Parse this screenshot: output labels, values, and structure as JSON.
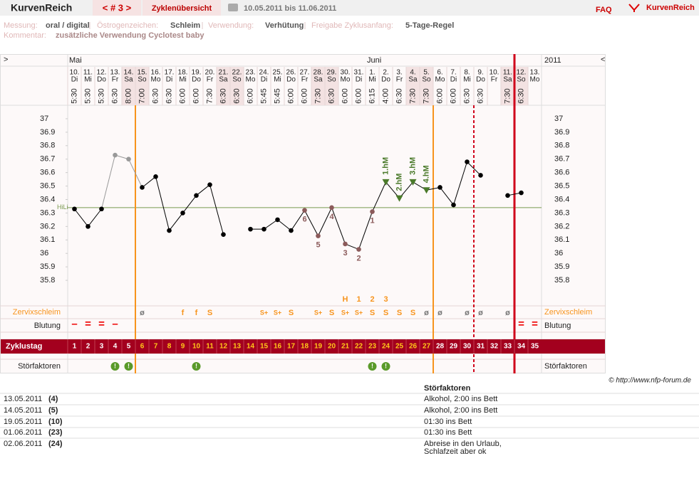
{
  "header": {
    "logo": "KurvenReich",
    "nav": "< # 3 >",
    "tab": "Zyklenübersicht",
    "range": "10.05.2011 bis 11.06.2011",
    "faq": "FAQ",
    "brand": "KurvenReich"
  },
  "info": [
    {
      "label": "Messung:",
      "value": "oral / digital"
    },
    {
      "label": "Östrogenzeichen:",
      "value": "Schleim"
    },
    {
      "label": "Verwendung:",
      "value": "Verhütung"
    },
    {
      "label": "Freigabe Zyklusanfang:",
      "value": "5-Tage-Regel"
    }
  ],
  "comment": {
    "label": "Kommentar:",
    "value": "zusätzliche Verwendung Cyclotest baby"
  },
  "chart_data": {
    "type": "line",
    "nav_left": ">",
    "nav_right": "<",
    "months": [
      "Mai",
      "Juni"
    ],
    "year": "2011",
    "days": [
      "10.",
      "11.",
      "12.",
      "13.",
      "14.",
      "15.",
      "16.",
      "17.",
      "18.",
      "19.",
      "20.",
      "21.",
      "22.",
      "23.",
      "24.",
      "25.",
      "26.",
      "27.",
      "28.",
      "29.",
      "30.",
      "31.",
      "1.",
      "2.",
      "3.",
      "4.",
      "5.",
      "6.",
      "7.",
      "8.",
      "9.",
      "10.",
      "11.",
      "12.",
      "13."
    ],
    "weekdays": [
      "Di",
      "Mi",
      "Do",
      "Fr",
      "Sa",
      "So",
      "Mo",
      "Di",
      "Mi",
      "Do",
      "Fr",
      "Sa",
      "So",
      "Mo",
      "Di",
      "Mi",
      "Do",
      "Fr",
      "Sa",
      "So",
      "Mo",
      "Di",
      "Mi",
      "Do",
      "Fr",
      "Sa",
      "So",
      "Mo",
      "Di",
      "Mi",
      "Do",
      "Fr",
      "Sa",
      "So",
      "Mo"
    ],
    "times": [
      "5:30",
      "5:30",
      "5:30",
      "6:30",
      "8:00",
      "7:00",
      "6:30",
      "6:30",
      "6:00",
      "6:00",
      "7:30",
      "6:30",
      "6:30",
      "6:00",
      "5:45",
      "5:45",
      "6:00",
      "6:00",
      "7:30",
      "6:30",
      "6:00",
      "6:00",
      "6:15",
      "4:00",
      "6:30",
      "7:30",
      "7:30",
      "6:00",
      "6:00",
      "6:30",
      "6:30",
      null,
      "7:30",
      "6:30",
      null
    ],
    "cycle_days": [
      1,
      2,
      3,
      4,
      5,
      6,
      7,
      8,
      9,
      10,
      11,
      12,
      13,
      14,
      15,
      16,
      17,
      18,
      19,
      20,
      21,
      22,
      23,
      24,
      25,
      26,
      27,
      28,
      29,
      30,
      31,
      32,
      33,
      34,
      35
    ],
    "values": [
      36.33,
      36.2,
      36.33,
      36.73,
      36.7,
      36.49,
      36.57,
      36.17,
      36.3,
      36.43,
      36.51,
      36.14,
      null,
      36.18,
      36.18,
      36.25,
      36.17,
      36.32,
      36.13,
      36.34,
      36.07,
      36.03,
      36.31,
      36.53,
      36.41,
      36.53,
      36.47,
      36.49,
      36.36,
      36.68,
      36.58,
      null,
      36.43,
      36.45,
      null
    ],
    "point_colors": [
      "#000",
      "#000",
      "#000",
      "#999",
      "#999",
      "#000",
      "#000",
      "#000",
      "#000",
      "#000",
      "#000",
      "#000",
      null,
      "#000",
      "#000",
      "#000",
      "#000",
      "#8b5a5a",
      "#8b5a5a",
      "#8b5a5a",
      "#8b5a5a",
      "#8b5a5a",
      "#8b5a5a",
      "#4a7a2a",
      "#4a7a2a",
      "#4a7a2a",
      "#4a7a2a",
      "#000",
      "#000",
      "#000",
      "#000",
      null,
      "#000",
      "#000",
      null
    ],
    "point_markers": [
      "circle",
      "circle",
      "circle",
      "circle",
      "circle",
      "circle",
      "circle",
      "circle",
      "circle",
      "circle",
      "circle",
      "circle",
      null,
      "circle",
      "circle",
      "circle",
      "circle",
      "circle",
      "circle",
      "circle",
      "circle",
      "circle",
      "circle",
      "triangle",
      "triangle",
      "triangle",
      "triangle",
      "circle",
      "circle",
      "circle",
      "circle",
      null,
      "circle",
      "circle",
      null
    ],
    "point_labels": [
      null,
      null,
      null,
      null,
      null,
      null,
      null,
      null,
      null,
      null,
      null,
      null,
      null,
      null,
      null,
      null,
      null,
      "6",
      "5",
      "4",
      "3",
      "2",
      "1",
      "1.hM",
      "2.hM",
      "3.hM",
      "4.hM",
      null,
      null,
      null,
      null,
      null,
      null,
      null,
      null
    ],
    "ylim": [
      35.7,
      37.1
    ],
    "yticks": [
      35.8,
      35.9,
      36,
      36.1,
      36.2,
      36.3,
      36.4,
      36.5,
      36.6,
      36.7,
      36.8,
      36.9,
      37
    ],
    "hili": {
      "label": "HiLi",
      "value": 36.34
    },
    "row_labels": {
      "zervix": "Zervixschleim",
      "bleeding": "Blutung",
      "cycle": "Zyklustag",
      "stoer": "Störfaktoren"
    },
    "zervix_top": [
      null,
      null,
      null,
      null,
      null,
      null,
      null,
      null,
      null,
      null,
      null,
      null,
      null,
      null,
      null,
      null,
      null,
      null,
      null,
      null,
      "H",
      "1",
      "2",
      "3",
      null,
      null,
      null,
      null,
      null,
      null,
      null,
      null,
      null,
      null,
      null
    ],
    "zervix": [
      null,
      null,
      null,
      null,
      null,
      "ø",
      null,
      null,
      "f",
      "f",
      "S",
      null,
      null,
      null,
      "S+",
      "S+",
      "S",
      null,
      "S+",
      "S",
      "S+",
      "S+",
      "S",
      "S",
      "S",
      "S",
      "ø",
      "ø",
      null,
      "ø",
      "ø",
      null,
      "ø",
      null,
      null
    ],
    "bleeding": [
      "–",
      "=",
      "=",
      "–",
      null,
      null,
      null,
      null,
      null,
      null,
      null,
      null,
      null,
      null,
      null,
      null,
      null,
      null,
      null,
      null,
      null,
      null,
      null,
      null,
      null,
      null,
      null,
      null,
      null,
      null,
      null,
      null,
      null,
      "=",
      "="
    ],
    "stoer": [
      null,
      null,
      null,
      "!",
      "!",
      null,
      null,
      null,
      null,
      "!",
      null,
      null,
      null,
      null,
      null,
      null,
      null,
      null,
      null,
      null,
      null,
      null,
      "!",
      "!",
      null,
      null,
      null,
      null,
      null,
      null,
      null,
      null,
      null,
      null,
      null
    ],
    "vlines": [
      {
        "after": 5,
        "color": "#f7941d",
        "style": "solid"
      },
      {
        "after": 27,
        "color": "#f7941d",
        "style": "solid"
      },
      {
        "after": 30,
        "color": "#d0021b",
        "style": "dashed"
      },
      {
        "after": 33,
        "color": "#d0021b",
        "style": "thick"
      }
    ]
  },
  "copyright": "© http://www.nfp-forum.de",
  "notes": {
    "header": "Störfaktoren",
    "rows": [
      {
        "date": "13.05.2011",
        "day": "(4)",
        "text": [
          "Alkohol, 2:00 ins Bett"
        ]
      },
      {
        "date": "14.05.2011",
        "day": "(5)",
        "text": [
          "Alkohol, 2:00 ins Bett"
        ]
      },
      {
        "date": "19.05.2011",
        "day": "(10)",
        "text": [
          "01:30 ins Bett"
        ]
      },
      {
        "date": "01.06.2011",
        "day": "(23)",
        "text": [
          "01:30 ins Bett"
        ]
      },
      {
        "date": "02.06.2011",
        "day": "(24)",
        "text": [
          "Abreise in den Urlaub,",
          "Schlafzeit aber ok"
        ]
      }
    ]
  }
}
